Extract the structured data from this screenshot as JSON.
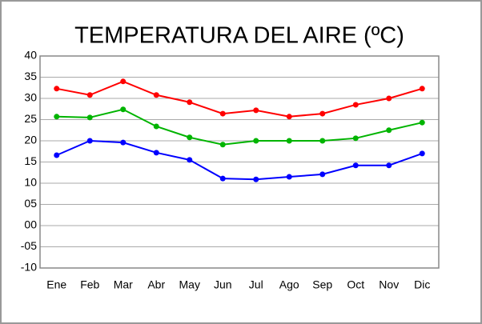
{
  "chart_data": {
    "type": "line",
    "title": "TEMPERATURA DEL AIRE (ºC)",
    "categories": [
      "Ene",
      "Feb",
      "Mar",
      "Abr",
      "May",
      "Jun",
      "Jul",
      "Ago",
      "Sep",
      "Oct",
      "Nov",
      "Dic"
    ],
    "series": [
      {
        "color": "#ff0000",
        "values": [
          32.3,
          30.8,
          34,
          30.8,
          29.1,
          26.4,
          27.2,
          25.7,
          26.4,
          28.5,
          30,
          32.3
        ]
      },
      {
        "color": "#00b400",
        "values": [
          25.7,
          25.5,
          27.4,
          23.4,
          20.8,
          19.1,
          20,
          20,
          20,
          20.6,
          22.5,
          24.3
        ]
      },
      {
        "color": "#0000ff",
        "values": [
          16.6,
          20,
          19.6,
          17.2,
          15.5,
          11.1,
          10.9,
          11.5,
          12.1,
          14.2,
          14.2,
          17
        ]
      }
    ],
    "ylim": [
      -10,
      40
    ],
    "yticks": [
      40,
      35,
      30,
      25,
      20,
      15,
      10,
      {
        "value": 5,
        "label": "05"
      },
      {
        "value": 0,
        "label": "00"
      },
      {
        "value": -5,
        "label": "-05"
      },
      -10
    ],
    "grid": true
  }
}
